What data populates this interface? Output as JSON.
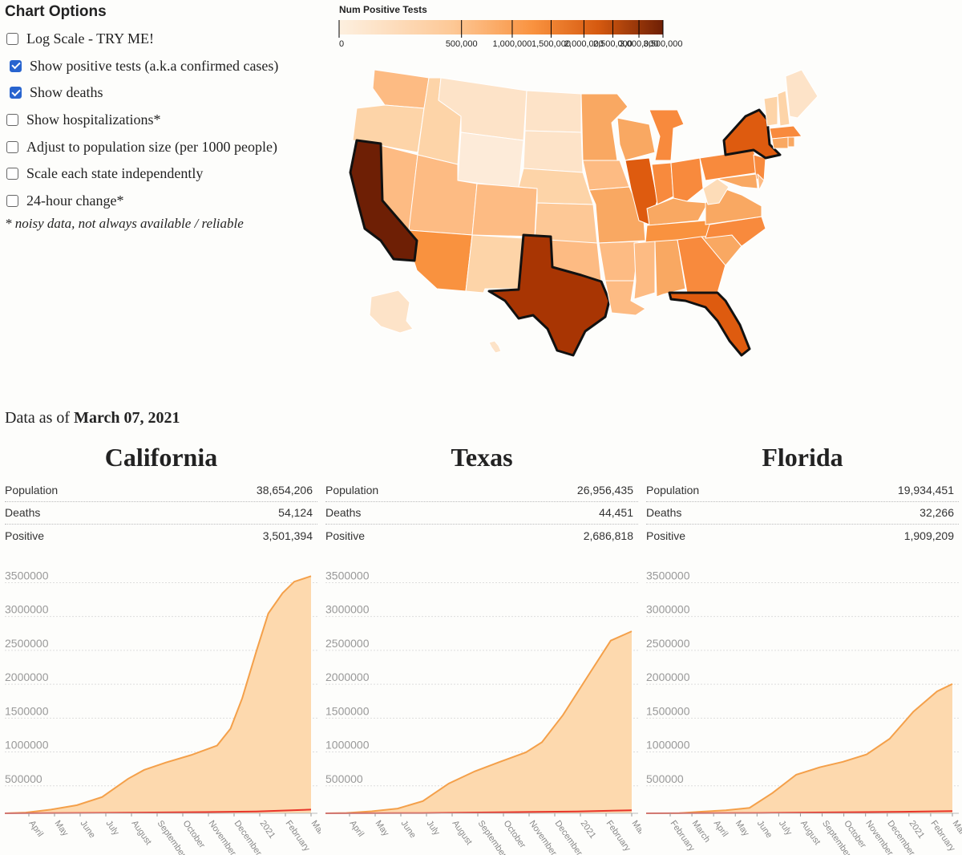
{
  "options": {
    "title": "Chart Options",
    "items": [
      {
        "label": "Log Scale - TRY ME!",
        "checked": false
      },
      {
        "label": "Show positive tests (a.k.a confirmed cases)",
        "checked": true
      },
      {
        "label": "Show deaths",
        "checked": true
      },
      {
        "label": "Show hospitalizations*",
        "checked": false
      },
      {
        "label": "Adjust to population size (per 1000 people)",
        "checked": false
      },
      {
        "label": "Scale each state independently",
        "checked": false
      },
      {
        "label": "24-hour change*",
        "checked": false
      }
    ],
    "note": "* noisy data, not always available / reliable"
  },
  "legend": {
    "title": "Num Positive Tests",
    "ticks": [
      "0",
      "500,000",
      "1,000,000",
      "1,500,000",
      "2,000,000",
      "2,500,000",
      "3,000,000",
      "3,500,000"
    ],
    "scale": "sqrt",
    "colors": [
      "#fde9d2",
      "#fdbd86",
      "#f88a3d",
      "#de5b0f",
      "#a83503",
      "#6e1f05"
    ]
  },
  "map": {
    "highlighted_states": [
      "California",
      "Texas",
      "Florida",
      "New York"
    ]
  },
  "as_of": {
    "prefix": "Data as of ",
    "date": "March 07, 2021"
  },
  "states": [
    {
      "name": "California",
      "population": "38,654,206",
      "deaths": "54,124",
      "positive": "3,501,394",
      "stat_labels": {
        "population": "Population",
        "deaths": "Deaths",
        "positive": "Positive"
      }
    },
    {
      "name": "Texas",
      "population": "26,956,435",
      "deaths": "44,451",
      "positive": "2,686,818",
      "stat_labels": {
        "population": "Population",
        "deaths": "Deaths",
        "positive": "Positive"
      }
    },
    {
      "name": "Florida",
      "population": "19,934,451",
      "deaths": "32,266",
      "positive": "1,909,209",
      "stat_labels": {
        "population": "Population",
        "deaths": "Deaths",
        "positive": "Positive"
      }
    }
  ],
  "colors": {
    "positive_fill": "#fdd9ae",
    "positive_line": "#f4a04a",
    "deaths_line": "#e8352a"
  },
  "chart_data": [
    {
      "type": "area",
      "title": "California",
      "y_ticks": [
        "3500000",
        "3000000",
        "2500000",
        "2000000",
        "1500000",
        "1000000",
        "500000"
      ],
      "ylim": [
        0,
        3600000
      ],
      "x_start": "2020-03-07",
      "x_end": "2021-03-07",
      "x_labels": [
        "April",
        "May",
        "June",
        "July",
        "August",
        "September",
        "October",
        "November",
        "December",
        "2021",
        "February",
        "March"
      ],
      "series": [
        {
          "name": "Positive",
          "x": [
            "2020-03-07",
            "2020-04-01",
            "2020-05-01",
            "2020-06-01",
            "2020-07-01",
            "2020-08-01",
            "2020-08-20",
            "2020-09-15",
            "2020-10-15",
            "2020-11-15",
            "2020-12-01",
            "2020-12-15",
            "2021-01-01",
            "2021-01-15",
            "2021-02-01",
            "2021-02-15",
            "2021-03-07"
          ],
          "values": [
            0,
            10000,
            55000,
            120000,
            240000,
            510000,
            640000,
            750000,
            860000,
            1000000,
            1250000,
            1700000,
            2400000,
            2950000,
            3250000,
            3420000,
            3501394
          ]
        },
        {
          "name": "Deaths",
          "x": [
            "2020-03-07",
            "2020-07-01",
            "2020-11-01",
            "2021-01-01",
            "2021-03-07"
          ],
          "values": [
            0,
            6000,
            18000,
            27000,
            54124
          ]
        }
      ]
    },
    {
      "type": "area",
      "title": "Texas",
      "y_ticks": [
        "3500000",
        "3000000",
        "2500000",
        "2000000",
        "1500000",
        "1000000",
        "500000"
      ],
      "ylim": [
        0,
        3600000
      ],
      "x_start": "2020-03-07",
      "x_end": "2021-03-07",
      "x_labels": [
        "April",
        "May",
        "June",
        "July",
        "August",
        "September",
        "October",
        "November",
        "December",
        "2021",
        "February",
        "March"
      ],
      "series": [
        {
          "name": "Positive",
          "x": [
            "2020-03-07",
            "2020-04-01",
            "2020-05-01",
            "2020-06-01",
            "2020-07-01",
            "2020-08-01",
            "2020-09-01",
            "2020-10-01",
            "2020-11-01",
            "2020-11-20",
            "2020-12-15",
            "2021-01-15",
            "2021-02-10",
            "2021-03-07"
          ],
          "values": [
            0,
            5000,
            30000,
            70000,
            180000,
            440000,
            620000,
            760000,
            900000,
            1050000,
            1450000,
            2050000,
            2550000,
            2686818
          ]
        },
        {
          "name": "Deaths",
          "x": [
            "2020-03-07",
            "2020-07-01",
            "2020-11-01",
            "2021-01-01",
            "2021-03-07"
          ],
          "values": [
            0,
            3000,
            19000,
            27000,
            44451
          ]
        }
      ]
    },
    {
      "type": "area",
      "title": "Florida",
      "y_ticks": [
        "3500000",
        "3000000",
        "2500000",
        "2000000",
        "1500000",
        "1000000",
        "500000"
      ],
      "ylim": [
        0,
        3600000
      ],
      "x_start": "2020-02-01",
      "x_end": "2021-03-07",
      "x_labels": [
        "February",
        "March",
        "April",
        "May",
        "June",
        "July",
        "August",
        "September",
        "October",
        "November",
        "December",
        "2021",
        "February",
        "March"
      ],
      "series": [
        {
          "name": "Positive",
          "x": [
            "2020-02-01",
            "2020-03-15",
            "2020-04-15",
            "2020-05-15",
            "2020-06-15",
            "2020-07-15",
            "2020-08-15",
            "2020-09-15",
            "2020-10-15",
            "2020-11-15",
            "2020-12-15",
            "2021-01-15",
            "2021-02-15",
            "2021-03-07"
          ],
          "values": [
            0,
            1000,
            25000,
            45000,
            80000,
            300000,
            570000,
            680000,
            760000,
            870000,
            1100000,
            1500000,
            1800000,
            1909209
          ]
        },
        {
          "name": "Deaths",
          "x": [
            "2020-02-01",
            "2020-07-01",
            "2020-11-01",
            "2021-01-01",
            "2021-03-07"
          ],
          "values": [
            0,
            4000,
            17000,
            22000,
            32266
          ]
        }
      ]
    }
  ]
}
